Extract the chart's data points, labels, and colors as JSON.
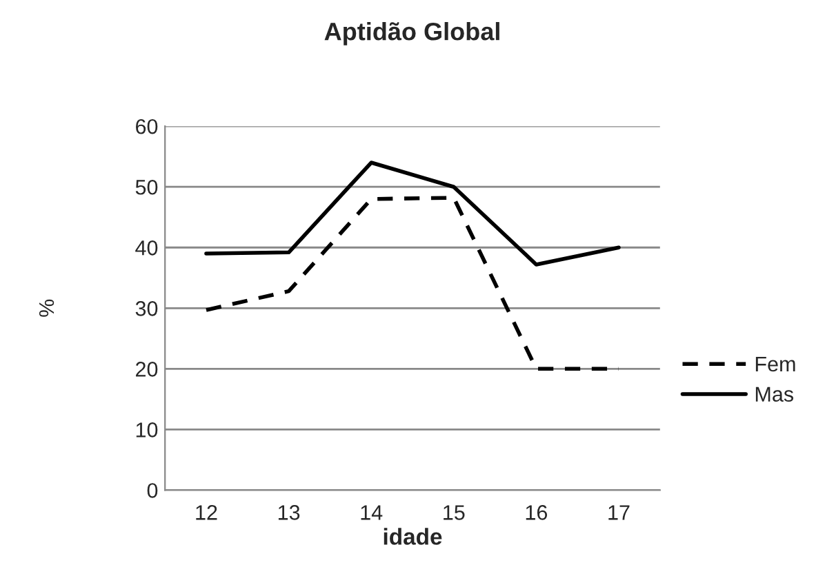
{
  "chart_data": {
    "type": "line",
    "title": "Aptidão Global",
    "xlabel": "idade",
    "ylabel": "%",
    "categories": [
      "12",
      "13",
      "14",
      "15",
      "16",
      "17"
    ],
    "series": [
      {
        "name": "Fem",
        "color": "#000000",
        "line_style": "dashed",
        "values": [
          29.7,
          32.8,
          48,
          48.2,
          20,
          20
        ]
      },
      {
        "name": "Mas",
        "color": "#000000",
        "line_style": "solid",
        "values": [
          39,
          39.2,
          54,
          50,
          37.2,
          40
        ]
      }
    ],
    "ylim": [
      0,
      60
    ],
    "yticks": [
      0,
      10,
      20,
      30,
      40,
      50,
      60
    ],
    "grid": "y",
    "legend": "right"
  }
}
